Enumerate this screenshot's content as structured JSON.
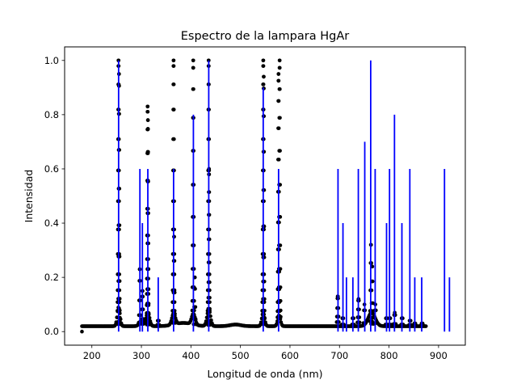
{
  "chart_data": {
    "type": "scatter",
    "title": "Espectro de la lampara HgAr",
    "xlabel": "Longitud de onda (nm)",
    "ylabel": "Intensidad",
    "xlim": [
      145,
      954
    ],
    "ylim": [
      -0.05,
      1.05
    ],
    "xticks": [
      200,
      300,
      400,
      500,
      600,
      700,
      800,
      900
    ],
    "yticks": [
      0.0,
      0.2,
      0.4,
      0.6,
      0.8,
      1.0
    ],
    "xtick_labels": [
      "200",
      "300",
      "400",
      "500",
      "600",
      "700",
      "800",
      "900"
    ],
    "ytick_labels": [
      "0.0",
      "0.2",
      "0.4",
      "0.6",
      "0.8",
      "1.0"
    ],
    "grid": false,
    "legend": "none",
    "series": [
      {
        "kind": "reference-lines",
        "color": "#0000ff",
        "x": [
          254,
          297,
          302,
          313,
          334,
          365,
          405,
          436,
          546,
          577,
          697,
          707,
          714,
          727,
          738,
          751,
          763,
          772,
          795,
          801,
          811,
          826,
          842,
          852,
          866,
          912,
          922
        ],
        "y": [
          1.0,
          0.6,
          0.4,
          0.6,
          0.2,
          0.6,
          0.8,
          1.0,
          0.9,
          0.6,
          0.6,
          0.4,
          0.2,
          0.2,
          0.6,
          0.7,
          1.0,
          0.6,
          0.4,
          0.6,
          0.8,
          0.4,
          0.6,
          0.2,
          0.2,
          0.6,
          0.2
        ]
      },
      {
        "kind": "measured-points",
        "color": "#000000",
        "baseline": 0.02,
        "x_range": [
          180,
          875
        ],
        "x_step": 1.5,
        "peaks": [
          {
            "x": 253.8,
            "h": 1.0,
            "w": 1.3
          },
          {
            "x": 254.8,
            "h": 0.95,
            "w": 1.0
          },
          {
            "x": 296.7,
            "h": 0.23,
            "w": 1.3
          },
          {
            "x": 302.2,
            "h": 0.15,
            "w": 1.3
          },
          {
            "x": 312.6,
            "h": 0.83,
            "w": 1.2
          },
          {
            "x": 313.2,
            "h": 0.78,
            "w": 1.0
          },
          {
            "x": 334.1,
            "h": 0.04,
            "w": 1.5
          },
          {
            "x": 365.0,
            "h": 1.0,
            "w": 1.3
          },
          {
            "x": 366.0,
            "h": 0.35,
            "w": 1.2
          },
          {
            "x": 404.7,
            "h": 1.0,
            "w": 1.2
          },
          {
            "x": 407.8,
            "h": 0.2,
            "w": 1.2
          },
          {
            "x": 435.8,
            "h": 1.0,
            "w": 1.3
          },
          {
            "x": 436.5,
            "h": 0.6,
            "w": 1.0
          },
          {
            "x": 546.1,
            "h": 1.0,
            "w": 1.3
          },
          {
            "x": 547.0,
            "h": 0.94,
            "w": 1.0
          },
          {
            "x": 576.9,
            "h": 0.95,
            "w": 1.2
          },
          {
            "x": 579.1,
            "h": 1.0,
            "w": 1.2
          },
          {
            "x": 696.5,
            "h": 0.13,
            "w": 1.5
          },
          {
            "x": 706.7,
            "h": 0.05,
            "w": 1.5
          },
          {
            "x": 727.3,
            "h": 0.05,
            "w": 1.5
          },
          {
            "x": 738.4,
            "h": 0.12,
            "w": 1.5
          },
          {
            "x": 750.4,
            "h": 0.1,
            "w": 1.5
          },
          {
            "x": 763.5,
            "h": 0.32,
            "w": 1.3
          },
          {
            "x": 766.0,
            "h": 0.24,
            "w": 1.2
          },
          {
            "x": 772.4,
            "h": 0.1,
            "w": 1.5
          },
          {
            "x": 794.8,
            "h": 0.05,
            "w": 1.5
          },
          {
            "x": 801.5,
            "h": 0.05,
            "w": 1.5
          },
          {
            "x": 811.5,
            "h": 0.07,
            "w": 1.5
          },
          {
            "x": 826.5,
            "h": 0.05,
            "w": 1.5
          },
          {
            "x": 842.5,
            "h": 0.04,
            "w": 1.5
          },
          {
            "x": 852.1,
            "h": 0.03,
            "w": 1.5
          },
          {
            "x": 866.8,
            "h": 0.03,
            "w": 1.5
          }
        ],
        "humps": [
          {
            "x": 254,
            "h": 0.07,
            "w": 4
          },
          {
            "x": 300,
            "h": 0.02,
            "w": 6
          },
          {
            "x": 313,
            "h": 0.05,
            "w": 5
          },
          {
            "x": 365,
            "h": 0.04,
            "w": 5
          },
          {
            "x": 385,
            "h": 0.012,
            "w": 25
          },
          {
            "x": 405,
            "h": 0.04,
            "w": 5
          },
          {
            "x": 436,
            "h": 0.06,
            "w": 5
          },
          {
            "x": 490,
            "h": 0.006,
            "w": 15
          },
          {
            "x": 546,
            "h": 0.05,
            "w": 4
          },
          {
            "x": 578,
            "h": 0.04,
            "w": 4
          },
          {
            "x": 765,
            "h": 0.05,
            "w": 10
          }
        ]
      }
    ]
  }
}
